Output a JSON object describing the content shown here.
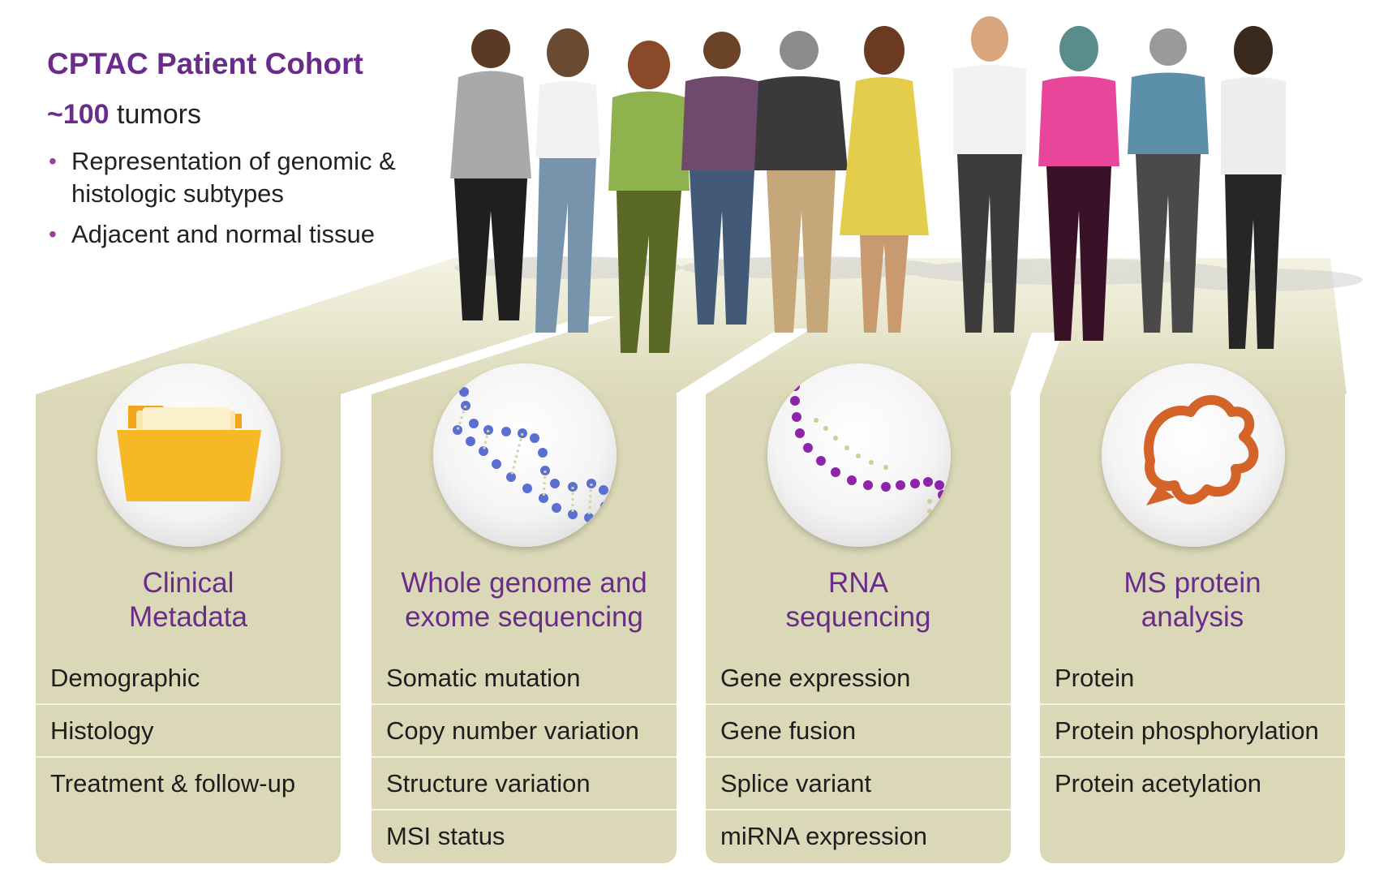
{
  "header": {
    "title": "CPTAC Patient Cohort",
    "count_number": "~100",
    "count_label": " tumors",
    "bullets": [
      "Representation of genomic & histologic subtypes",
      "Adjacent and normal tissue"
    ]
  },
  "colors": {
    "title_purple": "#6a2c8a",
    "panel_beige": "#dad8b7",
    "folder_yellow": "#f7b825",
    "dna_blue": "#5a6fd1",
    "rna_purple": "#8e24aa",
    "protein_orange": "#d4632a"
  },
  "panels": [
    {
      "title": "Clinical\nMetadata",
      "icon": "folder-icon",
      "items": [
        "Demographic",
        "Histology",
        "Treatment & follow-up"
      ]
    },
    {
      "title": "Whole genome and\nexome sequencing",
      "icon": "dna-icon",
      "items": [
        "Somatic mutation",
        "Copy number variation",
        "Structure variation",
        "MSI status"
      ]
    },
    {
      "title": "RNA\nsequencing",
      "icon": "rna-icon",
      "items": [
        "Gene expression",
        "Gene fusion",
        "Splice variant",
        "miRNA expression"
      ]
    },
    {
      "title": "MS protein\nanalysis",
      "icon": "protein-icon",
      "items": [
        "Protein",
        "Protein phosphorylation",
        "Protein acetylation"
      ]
    }
  ]
}
